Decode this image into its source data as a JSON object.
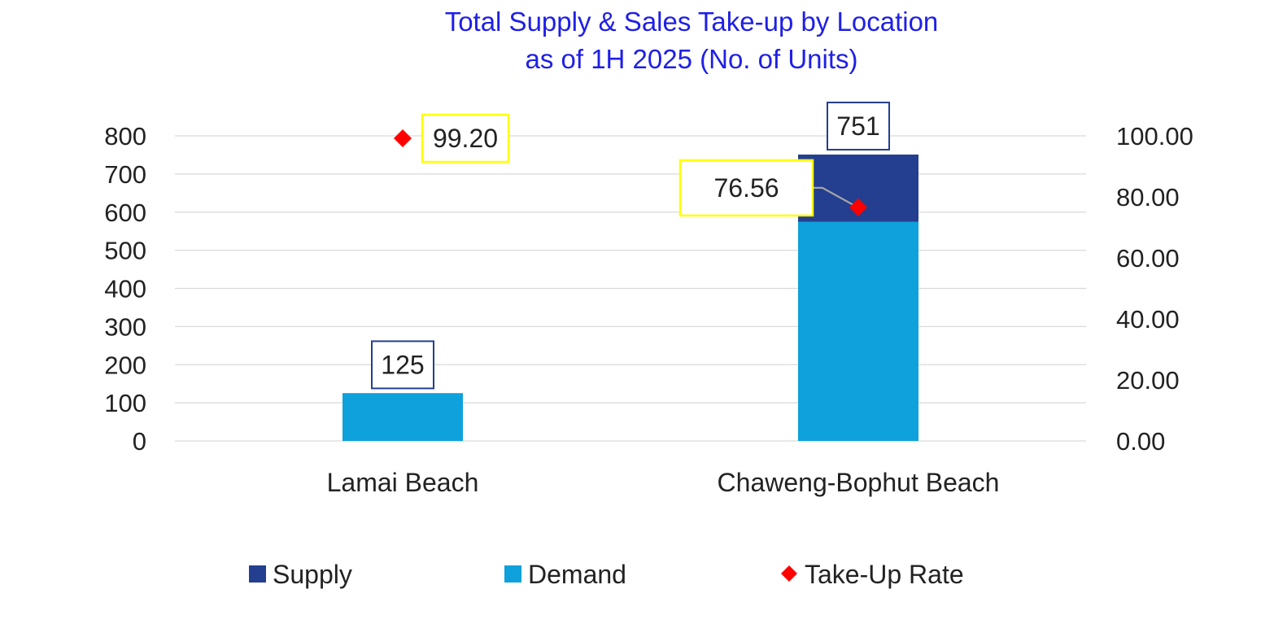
{
  "chart_data": {
    "type": "bar",
    "title": "Total Supply & Sales Take-up by Location",
    "subtitle": "as of 1H 2025 (No. of Units)",
    "categories": [
      "Lamai Beach",
      "Chaweng-Bophut Beach"
    ],
    "series": [
      {
        "name": "Supply",
        "type": "bar",
        "axis": "left",
        "values": [
          125,
          751
        ],
        "color": "#243F8F"
      },
      {
        "name": "Demand",
        "type": "bar",
        "axis": "left",
        "values": [
          124,
          575
        ],
        "color": "#0EA1DB"
      },
      {
        "name": "Take-Up Rate",
        "type": "scatter",
        "axis": "right",
        "marker": "diamond",
        "values": [
          99.2,
          76.56
        ],
        "color": "#FF0000"
      }
    ],
    "data_labels": {
      "Supply": [
        "125",
        "751"
      ],
      "Take-Up Rate": [
        "99.20",
        "76.56"
      ]
    },
    "y_left": {
      "min": 0,
      "max": 800,
      "step": 100,
      "ticks": [
        "0",
        "100",
        "200",
        "300",
        "400",
        "500",
        "600",
        "700",
        "800"
      ]
    },
    "y_right": {
      "min": 0,
      "max": 100,
      "step": 20,
      "ticks": [
        "0.00",
        "20.00",
        "40.00",
        "60.00",
        "80.00",
        "100.00"
      ]
    },
    "xlabel": "",
    "ylabel": "",
    "grid": true,
    "legend_position": "bottom",
    "title_color": "#1F1FE6",
    "gridline_color": "#D9D9D9",
    "supply_label_border_color": "#243F8F",
    "rate_label_border_color": "#FFFF00"
  },
  "legend": {
    "items": [
      "Supply",
      "Demand",
      "Take-Up Rate"
    ]
  }
}
